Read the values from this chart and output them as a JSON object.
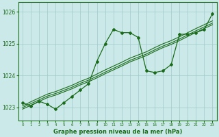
{
  "title": "Graphe pression niveau de la mer (hPa)",
  "bg_color": "#cce9e9",
  "line_color": "#1a6b1a",
  "x_values": [
    0,
    1,
    2,
    3,
    4,
    5,
    6,
    7,
    8,
    9,
    10,
    11,
    12,
    13,
    14,
    15,
    16,
    17,
    18,
    19,
    20,
    21,
    22,
    23
  ],
  "y_main": [
    1023.15,
    1023.05,
    1023.2,
    1023.1,
    1022.95,
    1023.15,
    1023.35,
    1023.55,
    1023.75,
    1024.45,
    1025.0,
    1025.45,
    1025.35,
    1025.35,
    1025.2,
    1024.15,
    1024.1,
    1024.15,
    1024.35,
    1025.3,
    1025.3,
    1025.35,
    1025.45,
    1025.95
  ],
  "y_trend1": [
    1023.05,
    1023.18,
    1023.3,
    1023.42,
    1023.5,
    1023.6,
    1023.7,
    1023.82,
    1023.92,
    1024.05,
    1024.18,
    1024.3,
    1024.42,
    1024.55,
    1024.65,
    1024.75,
    1024.88,
    1025.0,
    1025.1,
    1025.22,
    1025.35,
    1025.48,
    1025.6,
    1025.72
  ],
  "y_trend2": [
    1023.0,
    1023.12,
    1023.24,
    1023.36,
    1023.44,
    1023.54,
    1023.64,
    1023.76,
    1023.86,
    1023.98,
    1024.11,
    1024.23,
    1024.35,
    1024.48,
    1024.58,
    1024.68,
    1024.81,
    1024.93,
    1025.03,
    1025.15,
    1025.28,
    1025.41,
    1025.53,
    1025.65
  ],
  "y_trend3": [
    1022.95,
    1023.07,
    1023.19,
    1023.31,
    1023.39,
    1023.49,
    1023.59,
    1023.71,
    1023.81,
    1023.93,
    1024.06,
    1024.18,
    1024.3,
    1024.43,
    1024.53,
    1024.63,
    1024.76,
    1024.88,
    1024.98,
    1025.1,
    1025.23,
    1025.36,
    1025.48,
    1025.6
  ],
  "ylim": [
    1022.6,
    1026.3
  ],
  "yticks": [
    1023,
    1024,
    1025,
    1026
  ],
  "xlim": [
    -0.5,
    23.5
  ],
  "xticks": [
    0,
    1,
    2,
    3,
    4,
    5,
    6,
    7,
    8,
    9,
    10,
    11,
    12,
    13,
    14,
    15,
    16,
    17,
    18,
    19,
    20,
    21,
    22,
    23
  ]
}
